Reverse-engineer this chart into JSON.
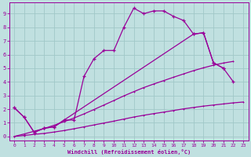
{
  "xlabel": "Windchill (Refroidissement éolien,°C)",
  "bg_color": "#c0e0e0",
  "grid_color": "#a0c8c8",
  "line_color": "#990099",
  "xlim": [
    -0.5,
    23.5
  ],
  "ylim": [
    -0.3,
    9.8
  ],
  "xticks": [
    0,
    1,
    2,
    3,
    4,
    5,
    6,
    7,
    8,
    9,
    10,
    11,
    12,
    13,
    14,
    15,
    16,
    17,
    18,
    19,
    20,
    21,
    22,
    23
  ],
  "yticks": [
    0,
    1,
    2,
    3,
    4,
    5,
    6,
    7,
    8,
    9
  ],
  "line1_x": [
    0,
    1,
    2,
    3,
    4,
    5,
    6,
    7,
    8,
    9,
    10,
    11,
    12,
    13,
    14,
    15,
    16,
    17,
    18,
    19,
    20,
    21
  ],
  "line1_y": [
    2.1,
    1.4,
    0.3,
    0.6,
    0.7,
    1.2,
    1.2,
    4.4,
    5.7,
    6.3,
    6.3,
    8.0,
    9.4,
    9.0,
    9.2,
    9.2,
    8.8,
    8.5,
    7.5,
    7.6,
    5.4,
    5.0
  ],
  "line2_x": [
    0,
    1,
    2,
    3,
    4,
    5,
    18,
    19,
    20,
    21,
    22
  ],
  "line2_y": [
    2.1,
    1.4,
    0.3,
    0.6,
    0.7,
    1.2,
    7.5,
    7.6,
    5.4,
    5.0,
    4.0
  ],
  "line3_x": [
    0,
    1,
    2,
    3,
    4,
    5,
    6,
    7,
    8,
    9,
    10,
    11,
    12,
    13,
    14,
    15,
    16,
    17,
    18,
    19,
    20,
    21,
    22,
    23
  ],
  "line3_y": [
    0.0,
    0.07,
    0.15,
    0.22,
    0.32,
    0.43,
    0.56,
    0.7,
    0.84,
    0.98,
    1.12,
    1.27,
    1.42,
    1.55,
    1.67,
    1.78,
    1.9,
    2.02,
    2.12,
    2.22,
    2.3,
    2.38,
    2.46,
    2.52
  ],
  "line4_x": [
    0,
    1,
    2,
    3,
    4,
    5,
    6,
    7,
    8,
    9,
    10,
    11,
    12,
    13,
    14,
    15,
    16,
    17,
    18,
    19,
    20,
    21,
    22
  ],
  "line4_y": [
    0.0,
    0.18,
    0.38,
    0.58,
    0.82,
    1.08,
    1.35,
    1.65,
    1.97,
    2.3,
    2.63,
    2.97,
    3.28,
    3.58,
    3.84,
    4.09,
    4.34,
    4.58,
    4.82,
    5.03,
    5.22,
    5.38,
    5.5
  ]
}
